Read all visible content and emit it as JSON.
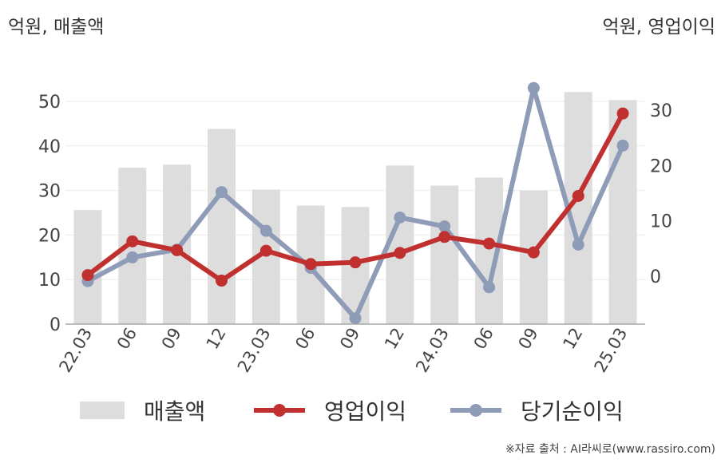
{
  "units": {
    "left": "억원, 매출액",
    "right": "억원, 영업이익"
  },
  "legend": [
    {
      "label": "매출액",
      "kind": "bar",
      "color": "#dddddd"
    },
    {
      "label": "영업이익",
      "kind": "line",
      "color": "#c0302f"
    },
    {
      "label": "당기순이익",
      "kind": "line",
      "color": "#8f9cb8"
    }
  ],
  "source": "※자료 출처 : AI라씨로(www.rassiro.com)",
  "chart_data": {
    "type": "bar",
    "categories": [
      "22.03",
      "06",
      "09",
      "12",
      "23.03",
      "06",
      "09",
      "12",
      "24.03",
      "06",
      "09",
      "12",
      "25.03"
    ],
    "left_axis": {
      "ylim": [
        0,
        50
      ],
      "ticks": [
        0,
        10,
        20,
        30,
        40,
        50
      ]
    },
    "right_axis": {
      "ylim": [
        -8.8,
        32
      ],
      "ticks": [
        0,
        10,
        20,
        30
      ]
    },
    "grid": true,
    "legend_position": "bottom",
    "series": [
      {
        "name": "매출액",
        "type": "bar",
        "axis": "left",
        "color": "#dddddd",
        "values": [
          25.6,
          35.1,
          35.8,
          43.8,
          30.2,
          26.6,
          26.3,
          35.6,
          31.1,
          32.9,
          30.0,
          52.1,
          50.3
        ]
      },
      {
        "name": "영업이익",
        "type": "line",
        "axis": "right",
        "color": "#c0302f",
        "values": [
          0.2,
          6.3,
          4.7,
          -0.8,
          4.6,
          2.2,
          2.5,
          4.2,
          7.1,
          5.9,
          4.3,
          14.5,
          29.4
        ]
      },
      {
        "name": "당기순이익",
        "type": "line",
        "axis": "right",
        "color": "#8f9cb8",
        "values": [
          -0.9,
          3.4,
          4.8,
          15.2,
          8.2,
          1.5,
          -7.6,
          10.6,
          9.0,
          -2.0,
          34.0,
          5.7,
          23.6
        ]
      }
    ]
  }
}
